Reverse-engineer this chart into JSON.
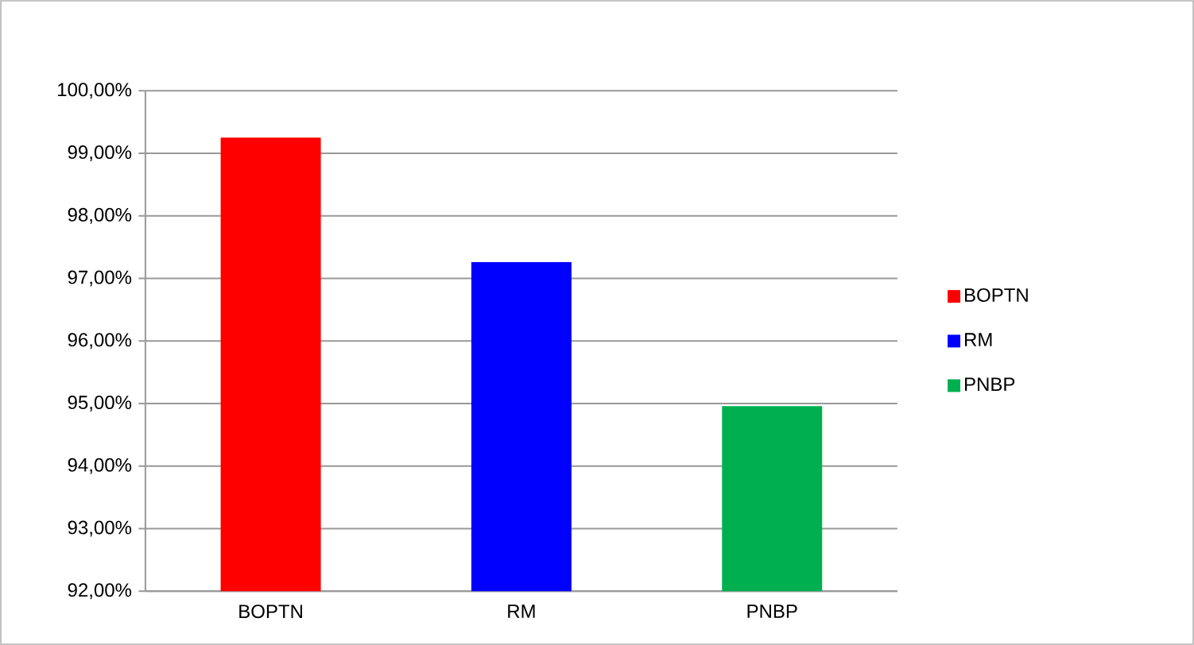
{
  "chart_data": {
    "type": "bar",
    "categories": [
      "BOPTN",
      "RM",
      "PNBP"
    ],
    "series": [
      {
        "name": "BOPTN",
        "color": "#ff0000",
        "values": [
          99.25,
          null,
          null
        ]
      },
      {
        "name": "RM",
        "color": "#0000ff",
        "values": [
          null,
          97.26,
          null
        ]
      },
      {
        "name": "PNBP",
        "color": "#00b050",
        "values": [
          null,
          null,
          94.96
        ]
      }
    ],
    "ylim": [
      92,
      100
    ],
    "yticks": [
      {
        "value": 92,
        "label": "92,00%"
      },
      {
        "value": 93,
        "label": "93,00%"
      },
      {
        "value": 94,
        "label": "94,00%"
      },
      {
        "value": 95,
        "label": "95,00%"
      },
      {
        "value": 96,
        "label": "96,00%"
      },
      {
        "value": 97,
        "label": "97,00%"
      },
      {
        "value": 98,
        "label": "98,00%"
      },
      {
        "value": 99,
        "label": "99,00%"
      },
      {
        "value": 100,
        "label": "100,00%"
      }
    ],
    "grid": "y",
    "legend": "right"
  }
}
